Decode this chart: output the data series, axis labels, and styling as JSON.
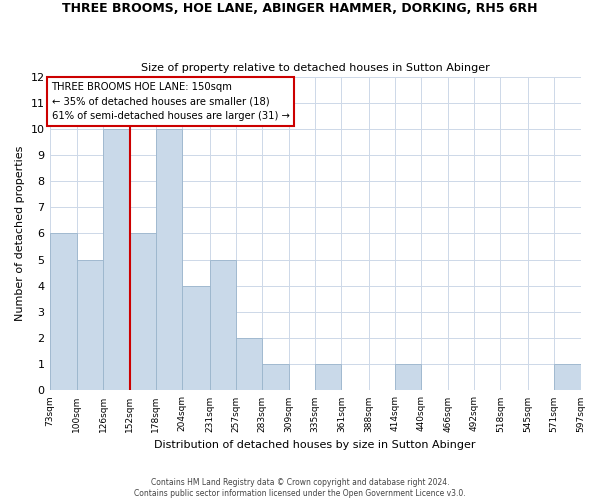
{
  "title": "THREE BROOMS, HOE LANE, ABINGER HAMMER, DORKING, RH5 6RH",
  "subtitle": "Size of property relative to detached houses in Sutton Abinger",
  "xlabel": "Distribution of detached houses by size in Sutton Abinger",
  "ylabel": "Number of detached properties",
  "bin_edges": [
    73,
    100,
    126,
    152,
    178,
    204,
    231,
    257,
    283,
    309,
    335,
    361,
    388,
    414,
    440,
    466,
    492,
    518,
    545,
    571,
    597
  ],
  "bar_heights": [
    6,
    5,
    10,
    6,
    10,
    4,
    5,
    2,
    1,
    0,
    1,
    0,
    0,
    1,
    0,
    0,
    0,
    0,
    0,
    1
  ],
  "bar_color": "#c9d9e9",
  "bar_edgecolor": "#9ab5cc",
  "vline_x": 152,
  "vline_color": "#cc0000",
  "annotation_title": "THREE BROOMS HOE LANE: 150sqm",
  "annotation_line1": "← 35% of detached houses are smaller (18)",
  "annotation_line2": "61% of semi-detached houses are larger (31) →",
  "annotation_box_edgecolor": "#cc0000",
  "ylim": [
    0,
    12
  ],
  "yticks": [
    0,
    1,
    2,
    3,
    4,
    5,
    6,
    7,
    8,
    9,
    10,
    11,
    12
  ],
  "footer_line1": "Contains HM Land Registry data © Crown copyright and database right 2024.",
  "footer_line2": "Contains public sector information licensed under the Open Government Licence v3.0.",
  "background_color": "#ffffff",
  "grid_color": "#cdd8e8"
}
